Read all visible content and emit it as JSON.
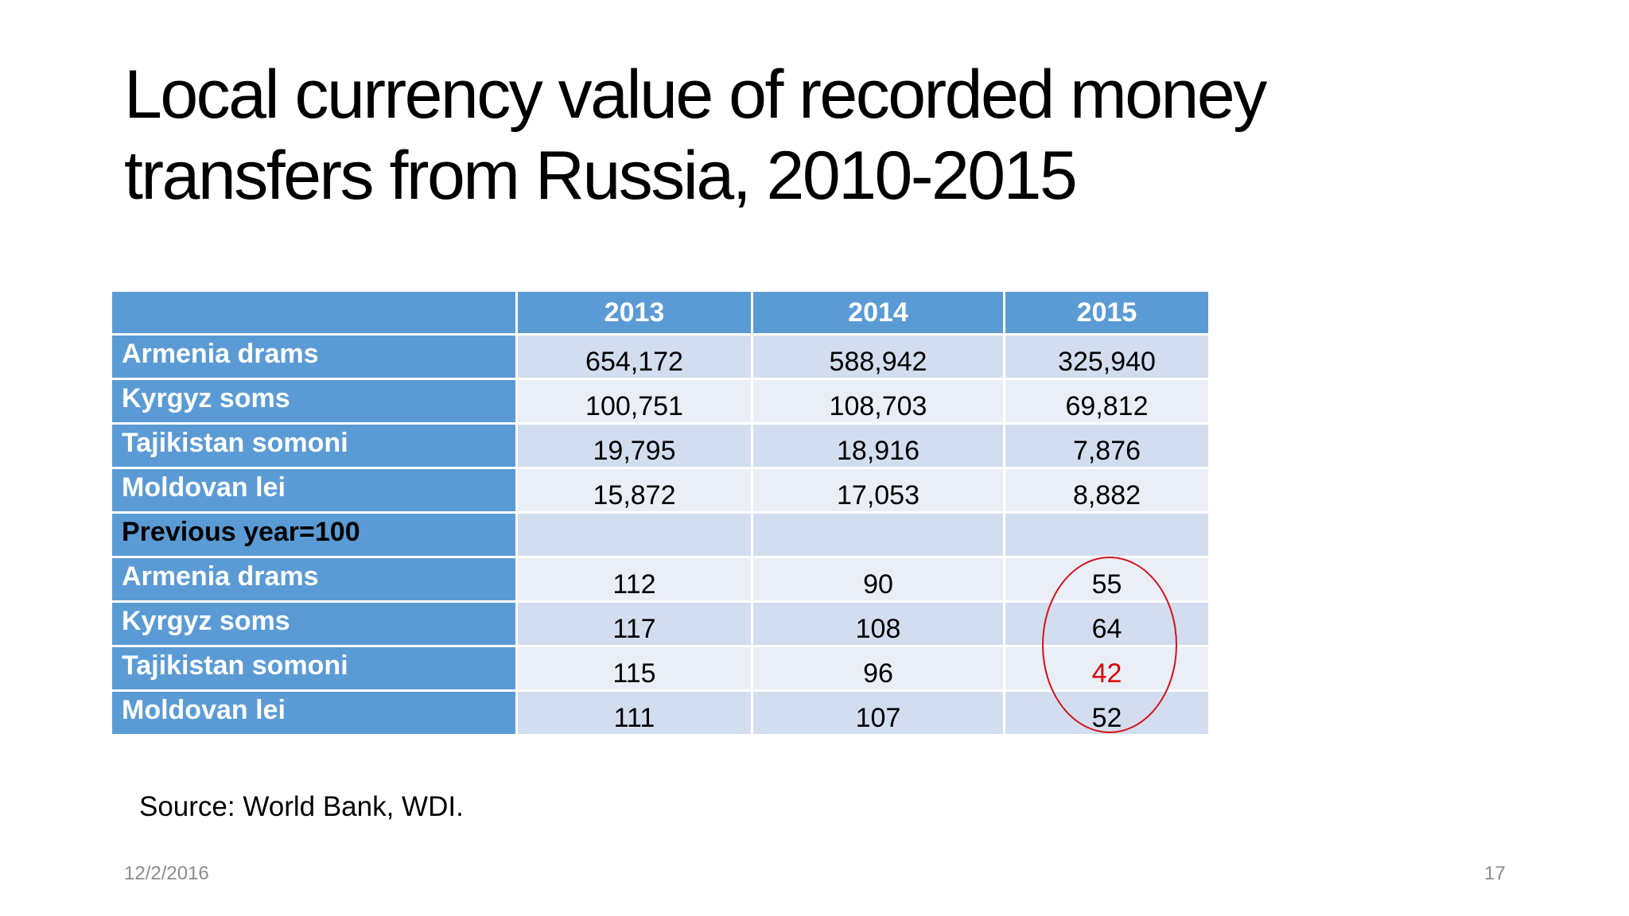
{
  "slide": {
    "title_line1": "Local currency value of recorded money",
    "title_line2": "transfers from Russia, 2010-2015",
    "source": "Source: World Bank, WDI.",
    "date": "12/2/2016",
    "page_number": "17"
  },
  "table": {
    "columns": [
      "",
      "2013",
      "2014",
      "2015"
    ],
    "rows": [
      {
        "label": "Armenia drams",
        "values": [
          "654,172",
          "588,942",
          "325,940"
        ]
      },
      {
        "label": "Kyrgyz soms",
        "values": [
          "100,751",
          "108,703",
          "69,812"
        ]
      },
      {
        "label": "Tajikistan somoni",
        "values": [
          "19,795",
          "18,916",
          "7,876"
        ]
      },
      {
        "label": "Moldovan lei",
        "values": [
          "15,872",
          "17,053",
          "8,882"
        ]
      },
      {
        "label": "Previous year=100",
        "values": [
          "",
          "",
          ""
        ]
      },
      {
        "label": "Armenia drams",
        "values": [
          "112",
          "90",
          "55"
        ]
      },
      {
        "label": "Kyrgyz soms",
        "values": [
          "117",
          "108",
          "64"
        ]
      },
      {
        "label": "Tajikistan somoni",
        "values": [
          "115",
          "96",
          "42"
        ]
      },
      {
        "label": "Moldovan lei",
        "values": [
          "111",
          "107",
          "52"
        ]
      }
    ]
  },
  "colors": {
    "header_blue": "#5b9bd5",
    "row_band_dark": "#d2deef",
    "row_band_light": "#eaeff7",
    "highlight_red": "#e00000",
    "annotation_circle": "#d8101a"
  }
}
